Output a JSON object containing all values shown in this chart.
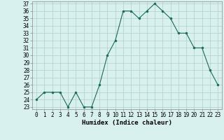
{
  "x": [
    0,
    1,
    2,
    3,
    4,
    5,
    6,
    7,
    8,
    9,
    10,
    11,
    12,
    13,
    14,
    15,
    16,
    17,
    18,
    19,
    20,
    21,
    22,
    23
  ],
  "y": [
    24,
    25,
    25,
    25,
    23,
    25,
    23,
    23,
    26,
    30,
    32,
    36,
    36,
    35,
    36,
    37,
    36,
    35,
    33,
    33,
    31,
    31,
    28,
    26
  ],
  "line_color": "#1a6b5a",
  "marker": "o",
  "marker_size": 2,
  "bg_color": "#d8f0ee",
  "grid_color": "#b0ceca",
  "xlabel": "Humidex (Indice chaleur)",
  "ylim": [
    23,
    37
  ],
  "xlim": [
    -0.5,
    23.5
  ],
  "yticks": [
    23,
    24,
    25,
    26,
    27,
    28,
    29,
    30,
    31,
    32,
    33,
    34,
    35,
    36,
    37
  ]
}
